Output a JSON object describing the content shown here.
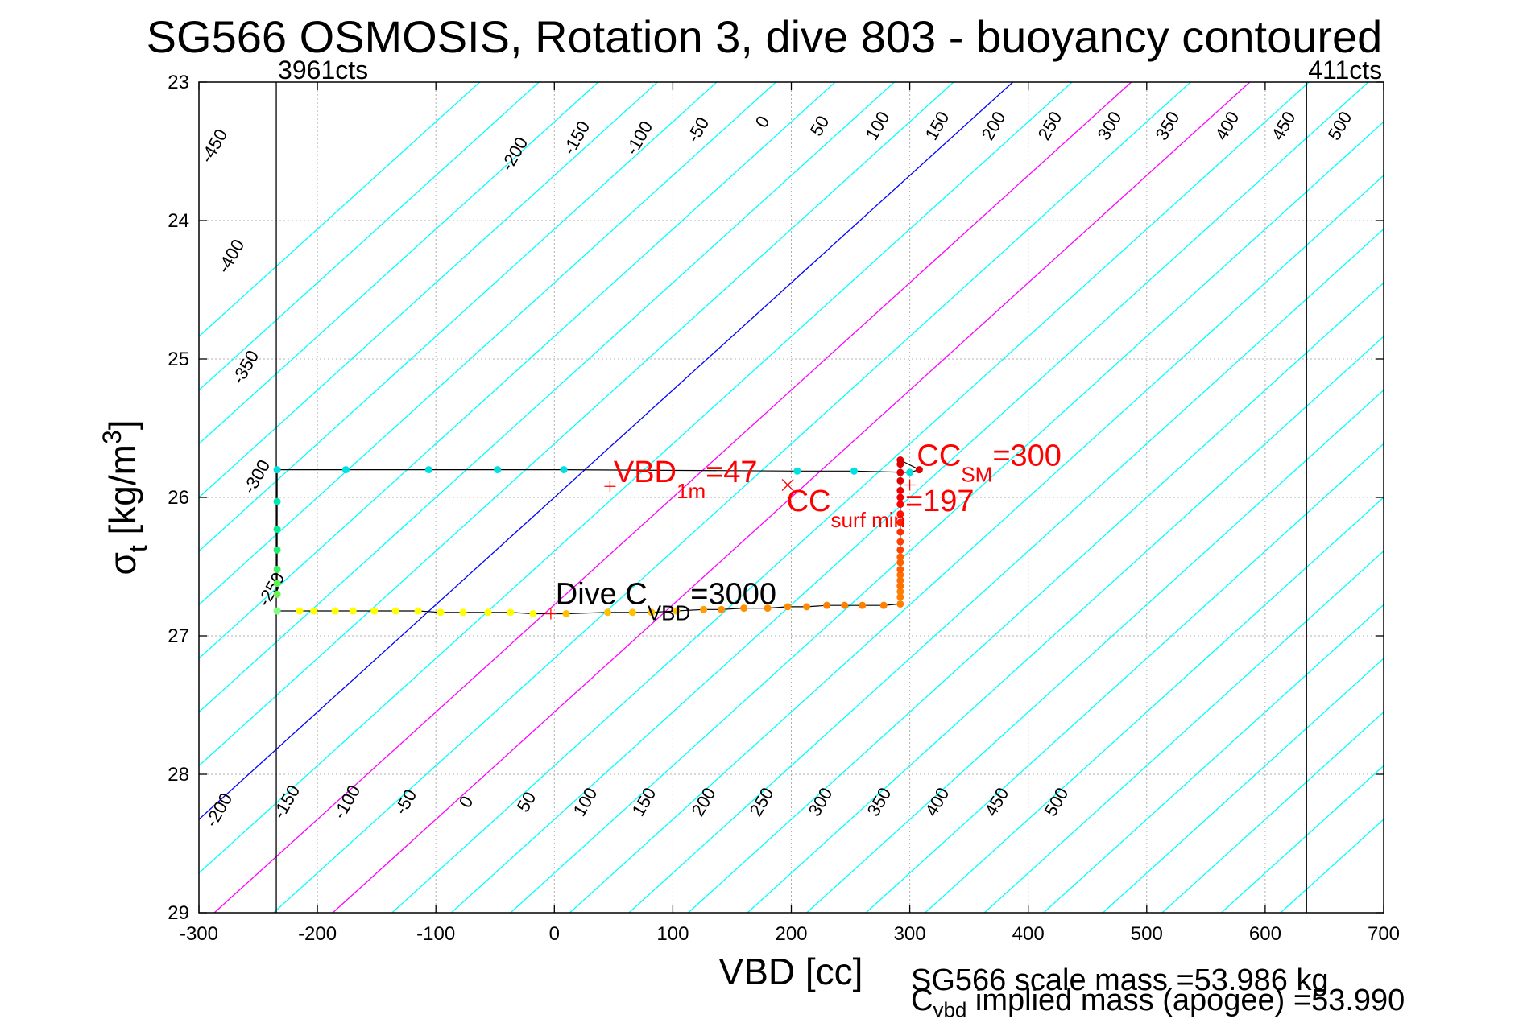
{
  "chart_data": {
    "type": "scatter",
    "title": "SG566 OSMOSIS, Rotation 3, dive 803 - buoyancy contoured",
    "xlabel": "VBD [cc]",
    "ylabel": "σ_t [kg/m^3]",
    "ylabel_parts": {
      "sym": "σ",
      "sub": "t",
      "main": " [kg/m",
      "sup": "3",
      "end": "]"
    },
    "xlim": [
      -300,
      700
    ],
    "ylim": [
      23,
      29
    ],
    "y_reversed": true,
    "x_ticks": [
      -300,
      -200,
      -100,
      0,
      100,
      200,
      300,
      400,
      500,
      600,
      700
    ],
    "y_ticks": [
      23,
      24,
      25,
      26,
      27,
      28,
      29
    ],
    "grid": true,
    "limit_lines": [
      {
        "x": -234.7,
        "label": "3961cts"
      },
      {
        "x": 634.9,
        "label": "411cts"
      }
    ],
    "buoyancy_contour_labels_top": [
      "-450",
      "-400",
      "-350",
      "-300",
      "-250",
      "-200",
      "-150",
      "-100",
      "-50",
      "0",
      "50",
      "100",
      "150",
      "200",
      "250",
      "300",
      "350",
      "400",
      "450",
      "500"
    ],
    "buoyancy_contour_labels_bottom": [
      "-200",
      "-150",
      "-100",
      "-50",
      "0",
      "50",
      "100",
      "150",
      "200",
      "250",
      "300",
      "350",
      "400",
      "450",
      "500"
    ],
    "contours": {
      "color_default": "#00ffff",
      "color_zero": "#0000ff",
      "color_highlight": "#ff00ff",
      "highlight_values": [
        100,
        200
      ],
      "slope_cc_per_sigma": -129,
      "pivot_sigma": 26,
      "offsets_cc": [
        -450,
        -400,
        -350,
        -300,
        -250,
        -200,
        -150,
        -100,
        -50,
        0,
        50,
        100,
        150,
        200,
        250,
        300,
        350,
        400,
        450,
        500,
        550,
        600,
        650,
        700,
        750,
        800,
        850,
        900,
        950,
        1000
      ]
    },
    "series": [
      {
        "points": [
          {
            "x": -234,
            "y": 26.82,
            "color": "#80ff80"
          },
          {
            "x": -215,
            "y": 26.82,
            "color": "#ffff00"
          },
          {
            "x": -203,
            "y": 26.82,
            "color": "#ffff00"
          },
          {
            "x": -185,
            "y": 26.82,
            "color": "#ffff00"
          },
          {
            "x": -170,
            "y": 26.82,
            "color": "#ffff00"
          },
          {
            "x": -152,
            "y": 26.82,
            "color": "#ffff00"
          },
          {
            "x": -134,
            "y": 26.82,
            "color": "#ffff00"
          },
          {
            "x": -115,
            "y": 26.82,
            "color": "#ffff00"
          },
          {
            "x": -96,
            "y": 26.83,
            "color": "#ffff00"
          },
          {
            "x": -77,
            "y": 26.83,
            "color": "#ffff00"
          },
          {
            "x": -56,
            "y": 26.83,
            "color": "#ffff00"
          },
          {
            "x": -37,
            "y": 26.83,
            "color": "#ffff00"
          },
          {
            "x": -18,
            "y": 26.84,
            "color": "#ffff00"
          },
          {
            "x": 10,
            "y": 26.84,
            "color": "#ffc000"
          },
          {
            "x": 45,
            "y": 26.83,
            "color": "#ffc000"
          },
          {
            "x": 66,
            "y": 26.83,
            "color": "#ffc000"
          },
          {
            "x": 82,
            "y": 26.83,
            "color": "#ffc000"
          },
          {
            "x": 103,
            "y": 26.82,
            "color": "#ffc000"
          },
          {
            "x": 126,
            "y": 26.81,
            "color": "#ffa000"
          },
          {
            "x": 141,
            "y": 26.81,
            "color": "#ff9000"
          },
          {
            "x": 160,
            "y": 26.8,
            "color": "#ff9000"
          },
          {
            "x": 180,
            "y": 26.8,
            "color": "#ff8c00"
          },
          {
            "x": 197,
            "y": 26.79,
            "color": "#ff8c00"
          },
          {
            "x": 213,
            "y": 26.79,
            "color": "#ff8c00"
          },
          {
            "x": 230,
            "y": 26.78,
            "color": "#ff8000"
          },
          {
            "x": 245,
            "y": 26.78,
            "color": "#ff8000"
          },
          {
            "x": 260,
            "y": 26.78,
            "color": "#ff8000"
          },
          {
            "x": 278,
            "y": 26.78,
            "color": "#ff8000"
          },
          {
            "x": 292,
            "y": 26.77,
            "color": "#ff8000"
          },
          {
            "x": 292,
            "y": 26.72,
            "color": "#ff8000"
          },
          {
            "x": 292,
            "y": 26.68,
            "color": "#ff8000"
          },
          {
            "x": 292,
            "y": 26.64,
            "color": "#ff7000"
          },
          {
            "x": 292,
            "y": 26.6,
            "color": "#ff7000"
          },
          {
            "x": 292,
            "y": 26.56,
            "color": "#ff7000"
          },
          {
            "x": 292,
            "y": 26.52,
            "color": "#ff6000"
          },
          {
            "x": 292,
            "y": 26.47,
            "color": "#ff6000"
          },
          {
            "x": 292,
            "y": 26.43,
            "color": "#ff6000"
          },
          {
            "x": 292,
            "y": 26.38,
            "color": "#ff4000"
          },
          {
            "x": 292,
            "y": 26.32,
            "color": "#ff4000"
          },
          {
            "x": 292,
            "y": 26.25,
            "color": "#ff3000"
          },
          {
            "x": 292,
            "y": 26.18,
            "color": "#ff2000"
          },
          {
            "x": 292,
            "y": 26.12,
            "color": "#ff1000"
          },
          {
            "x": 292,
            "y": 26.05,
            "color": "#ff0000"
          },
          {
            "x": 292,
            "y": 26.0,
            "color": "#ee0000"
          },
          {
            "x": 292,
            "y": 25.95,
            "color": "#ee0000"
          },
          {
            "x": 292,
            "y": 25.88,
            "color": "#dd0000"
          },
          {
            "x": 292,
            "y": 25.82,
            "color": "#dd0000"
          },
          {
            "x": 292,
            "y": 25.76,
            "color": "#dd0000"
          },
          {
            "x": 292,
            "y": 25.73,
            "color": "#dd0000"
          },
          {
            "x": 308,
            "y": 25.8,
            "color": "#dd0000"
          },
          {
            "x": 300,
            "y": 25.82,
            "color": "#00e0e0"
          },
          {
            "x": 253,
            "y": 25.81,
            "color": "#00e0e0"
          },
          {
            "x": 205,
            "y": 25.81,
            "color": "#00e0e0"
          },
          {
            "x": 8,
            "y": 25.8,
            "color": "#00e0e0"
          },
          {
            "x": -48,
            "y": 25.8,
            "color": "#00e0e0"
          },
          {
            "x": -106,
            "y": 25.8,
            "color": "#00e0e0"
          },
          {
            "x": -176,
            "y": 25.8,
            "color": "#00e0e0"
          },
          {
            "x": -234,
            "y": 25.8,
            "color": "#00e0e0"
          },
          {
            "x": -234,
            "y": 26.03,
            "color": "#00e8b0"
          },
          {
            "x": -234,
            "y": 26.23,
            "color": "#00f090"
          },
          {
            "x": -234,
            "y": 26.38,
            "color": "#20f070"
          },
          {
            "x": -234,
            "y": 26.52,
            "color": "#40f060"
          },
          {
            "x": -234,
            "y": 26.62,
            "color": "#60f050"
          },
          {
            "x": -234,
            "y": 26.7,
            "color": "#70f050"
          }
        ]
      }
    ],
    "markers": [
      {
        "x": 47,
        "y": 25.92,
        "symbol": "+",
        "color": "#ff0000"
      },
      {
        "x": 197,
        "y": 25.91,
        "symbol": "x",
        "color": "#ff0000"
      },
      {
        "x": 300,
        "y": 25.91,
        "symbol": "+",
        "color": "#ff0000"
      },
      {
        "x": -3,
        "y": 26.84,
        "symbol": "+",
        "color": "#ff0000"
      }
    ],
    "annotations": [
      {
        "id": "vbd1m",
        "x": 50,
        "y": 25.89,
        "color": "#ff0000",
        "main": "VBD",
        "sub": "1m",
        "tail": "=47"
      },
      {
        "id": "ccsm",
        "x": 306,
        "y": 25.77,
        "color": "#ff0000",
        "main": "CC",
        "sub": "SM",
        "tail": "=300"
      },
      {
        "id": "ccsurf",
        "x": 196,
        "y": 26.1,
        "color": "#ff0000",
        "main": "CC",
        "sub": "surf min",
        "tail": "=197"
      },
      {
        "id": "divec",
        "x": 1,
        "y": 26.77,
        "color": "#000000",
        "main": "Dive C",
        "sub": "VBD",
        "tail": "=3000"
      }
    ]
  },
  "footer": {
    "scale_mass_text": "SG566 scale mass =53.986 kg",
    "implied_mass_sym": "C",
    "implied_mass_sub": "vbd",
    "implied_mass_text": " implied mass (apogee) =53.990"
  }
}
